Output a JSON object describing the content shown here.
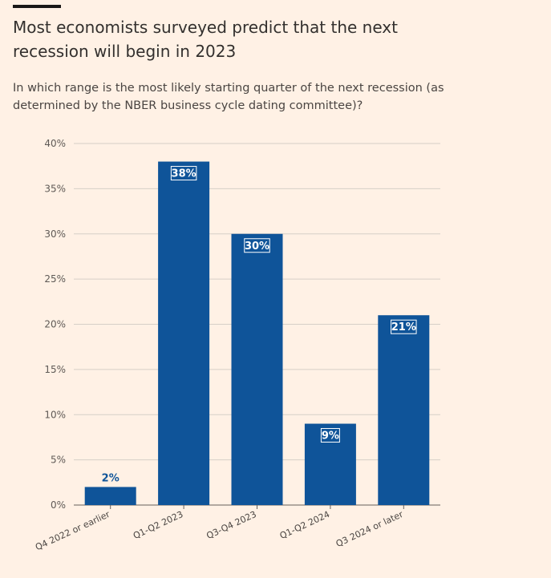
{
  "header": {
    "title": "Most economists surveyed predict that the next recession will begin in 2023",
    "subtitle": "In which range is the most likely starting quarter of the next recession (as determined by the NBER business cycle dating committee)?"
  },
  "colors": {
    "background": "#fff1e5",
    "bar": "#0f5499",
    "grid": "#d6cfc7",
    "label_outside": "#0f5499",
    "label_inside": "#ffffff"
  },
  "chart_data": {
    "type": "bar",
    "title": "Most economists surveyed predict that the next recession will begin in 2023",
    "subtitle": "In which range is the most likely starting quarter of the next recession (as determined by the NBER business cycle dating committee)?",
    "xlabel": "",
    "ylabel": "",
    "categories": [
      "Q4 2022 or earlier",
      "Q1-Q2 2023",
      "Q3-Q4 2023",
      "Q1-Q2 2024",
      "Q3 2024 or later"
    ],
    "values": [
      2,
      38,
      30,
      9,
      21
    ],
    "data_labels": [
      "2%",
      "38%",
      "30%",
      "9%",
      "21%"
    ],
    "ylim": [
      0,
      40
    ],
    "yticks": [
      0,
      5,
      10,
      15,
      20,
      25,
      30,
      35,
      40
    ],
    "ytick_labels": [
      "0%",
      "5%",
      "10%",
      "15%",
      "20%",
      "25%",
      "30%",
      "35%",
      "40%"
    ],
    "grid": true,
    "legend": "none"
  }
}
